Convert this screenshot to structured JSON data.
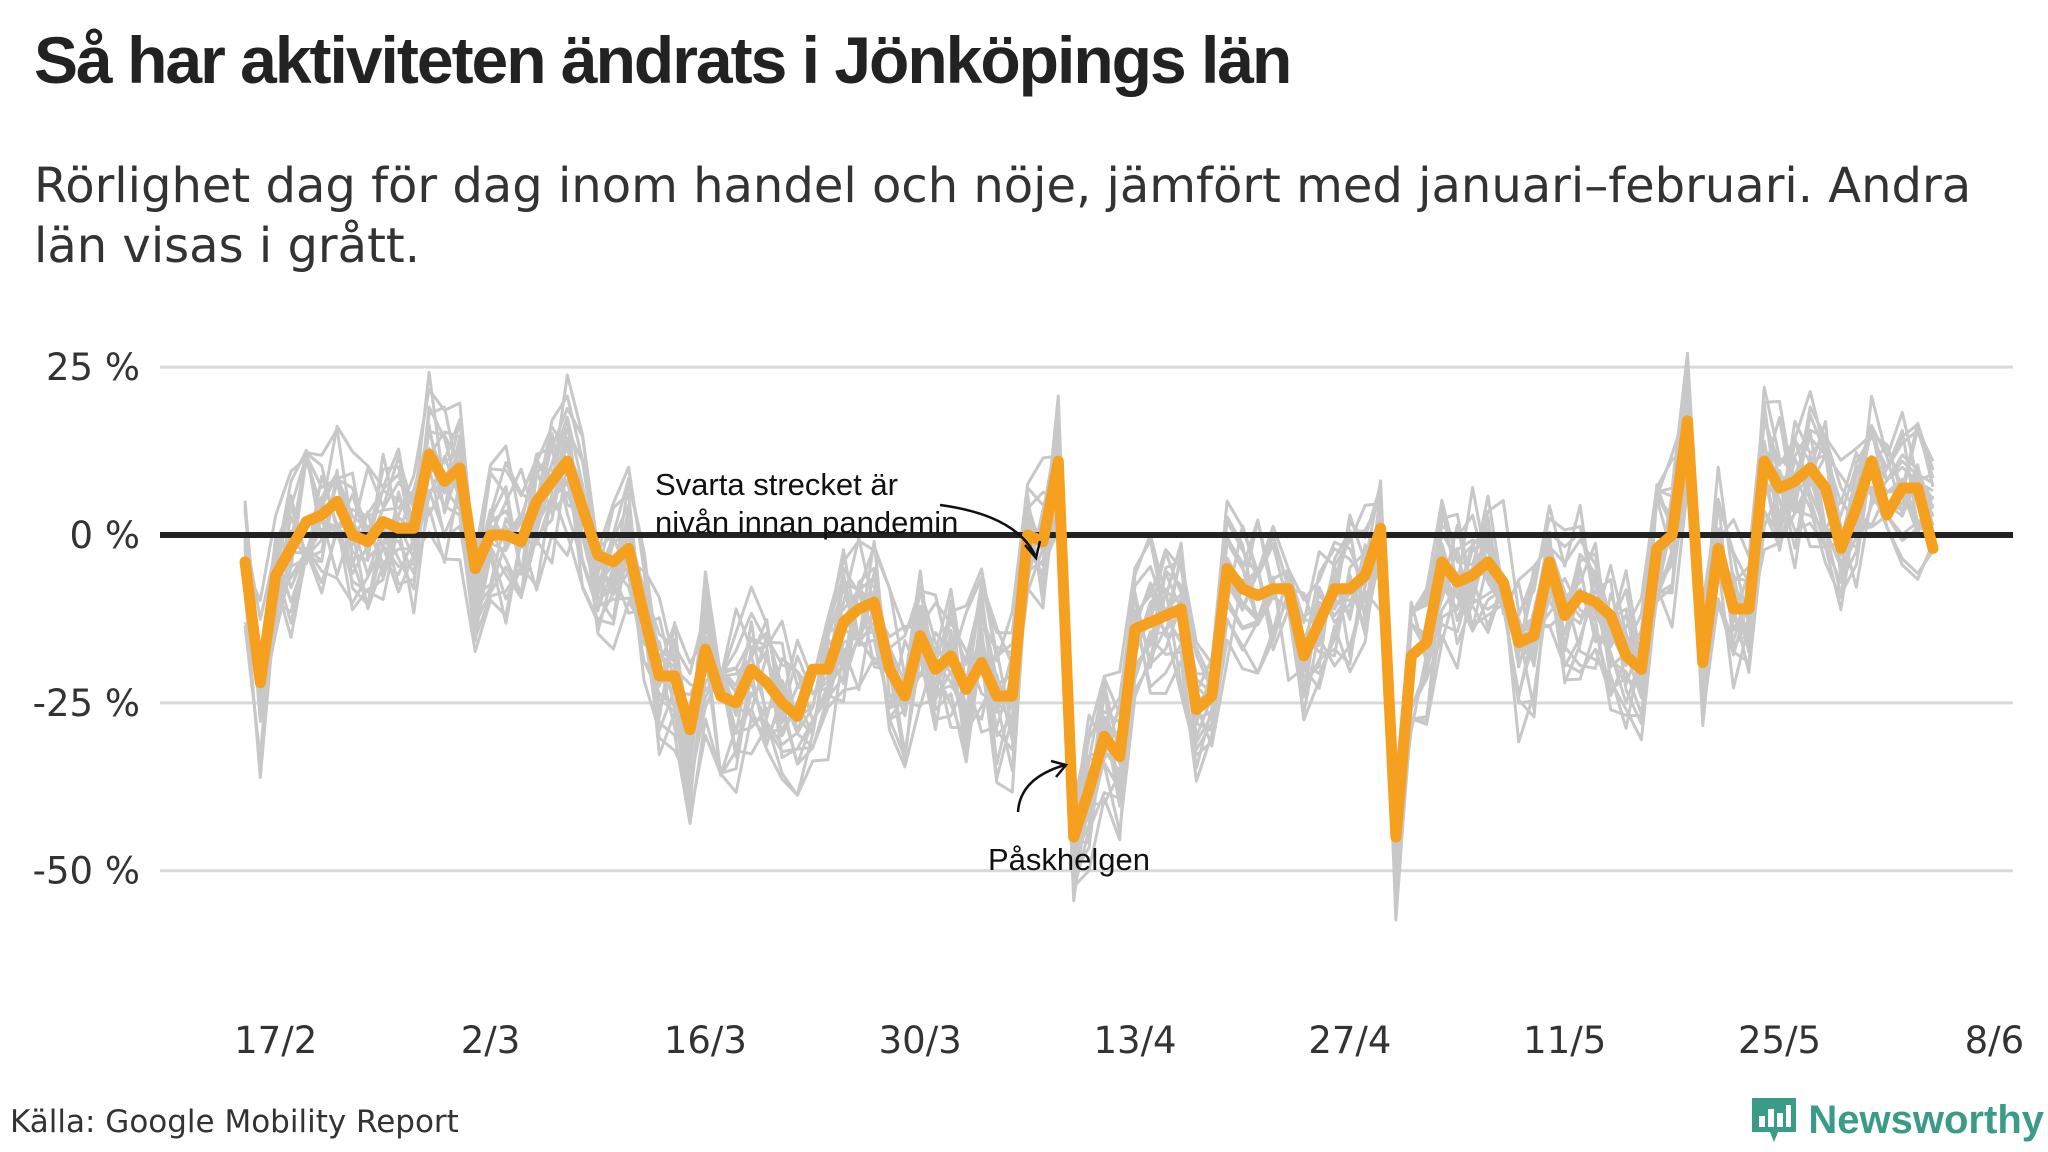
{
  "title": "Så har aktiviteten ändrats i Jönköpings län",
  "subtitle": "Rörlighet dag för dag inom handel och nöje, jämfört med januari–februari. Andra län visas i grått.",
  "source": "Källa: Google Mobility Report",
  "brand": "Newsworthy",
  "colors": {
    "highlight": "#F5A01F",
    "others": "#C8C8C8",
    "baseline": "#222222",
    "grid": "#D9D9D9",
    "brand": "#3A9C86"
  },
  "chart_data": {
    "type": "line",
    "x_tick_labels": [
      "17/2",
      "2/3",
      "16/3",
      "30/3",
      "13/4",
      "27/4",
      "11/5",
      "25/5",
      "8/6"
    ],
    "y_tick_labels": [
      "25 %",
      "0 %",
      "-25 %",
      "-50 %"
    ],
    "y_ticks": [
      25,
      0,
      -25,
      -50
    ],
    "ylim": [
      -70,
      35
    ],
    "grid": true,
    "baseline_value": 0,
    "x_start": "2020-02-15",
    "x_end": "2020-06-05",
    "highlight_series": {
      "name": "Jönköpings län",
      "values": [
        -4,
        -22,
        -6,
        -2,
        2,
        3,
        5,
        0,
        -1,
        2,
        1,
        1,
        12,
        8,
        10,
        -5,
        0,
        0,
        -1,
        5,
        8,
        11,
        4,
        -3,
        -4,
        -2,
        -12,
        -21,
        -21,
        -29,
        -17,
        -24,
        -25,
        -20,
        -22,
        -25,
        -27,
        -20,
        -20,
        -13,
        -11,
        -10,
        -20,
        -24,
        -15,
        -20,
        -18,
        -23,
        -19,
        -24,
        -24,
        0,
        -1,
        11,
        -45,
        -38,
        -30,
        -33,
        -14,
        -13,
        -12,
        -11,
        -26,
        -24,
        -5,
        -8,
        -9,
        -8,
        -8,
        -18,
        -13,
        -8,
        -8,
        -6,
        1,
        -45,
        -18,
        -16,
        -4,
        -7,
        -6,
        -4,
        -7,
        -16,
        -15,
        -4,
        -12,
        -9,
        -10,
        -12,
        -18,
        -20,
        -2,
        0,
        17,
        -19,
        -2,
        -11,
        -11,
        11,
        7,
        8,
        10,
        7,
        -2,
        4,
        11,
        3,
        7,
        7,
        -2
      ]
    },
    "other_series_count": 20,
    "annotations": [
      {
        "text_lines": [
          "Svarta strecket är",
          "nivån innan pandemin"
        ]
      },
      {
        "text_lines": [
          "Påskhelgen"
        ]
      }
    ]
  }
}
